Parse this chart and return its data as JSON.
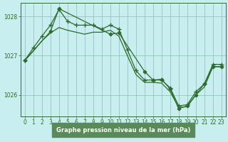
{
  "title": "Graphe pression niveau de la mer (hPa)",
  "background_color": "#c8eef0",
  "plot_bg": "#c8eef0",
  "grid_color": "#90c8b8",
  "line_color": "#2d6b2d",
  "xlabel_bg": "#5a8a5a",
  "xlabel_fg": "#ffffff",
  "xlim": [
    -0.5,
    23.5
  ],
  "ylim": [
    1025.45,
    1028.35
  ],
  "yticks": [
    1026,
    1027,
    1028
  ],
  "xticks": [
    0,
    1,
    2,
    3,
    4,
    5,
    6,
    7,
    8,
    9,
    10,
    11,
    12,
    13,
    14,
    15,
    16,
    17,
    18,
    19,
    20,
    21,
    22,
    23
  ],
  "series": [
    {
      "x": [
        0,
        1,
        2,
        3,
        4,
        5,
        6,
        7,
        8,
        9,
        10,
        11,
        12,
        13,
        14,
        15,
        16,
        17,
        18,
        19,
        20,
        21,
        22,
        23
      ],
      "y": [
        1026.88,
        1027.2,
        1027.5,
        1027.78,
        1028.18,
        1027.88,
        1027.78,
        1027.78,
        1027.78,
        1027.68,
        1027.78,
        1027.68,
        1027.15,
        1026.62,
        1026.38,
        1026.38,
        1026.38,
        1026.18,
        1025.72,
        1025.75,
        1026.08,
        1026.28,
        1026.78,
        1026.78
      ],
      "marker": "+"
    },
    {
      "x": [
        0,
        1,
        2,
        3,
        4,
        5,
        6,
        7,
        8,
        9,
        10,
        11,
        12,
        13,
        14,
        15,
        16,
        17,
        18,
        19,
        20,
        21,
        22,
        23
      ],
      "y": [
        1026.88,
        1027.12,
        1027.38,
        1027.58,
        1027.72,
        1027.65,
        1027.6,
        1027.55,
        1027.6,
        1027.6,
        1027.65,
        1027.5,
        1027.0,
        1026.52,
        1026.32,
        1026.32,
        1026.3,
        1026.08,
        1025.68,
        1025.7,
        1026.0,
        1026.2,
        1026.72,
        1026.72
      ],
      "marker": null
    },
    {
      "x": [
        0,
        3,
        4,
        10,
        11,
        14,
        15,
        16,
        17,
        18,
        19,
        20,
        21,
        22,
        23
      ],
      "y": [
        1026.88,
        1027.62,
        1028.2,
        1027.55,
        1027.58,
        1026.6,
        1026.38,
        1026.4,
        1026.15,
        1025.65,
        1025.72,
        1026.0,
        1026.28,
        1026.72,
        1026.72
      ],
      "marker": "D"
    }
  ]
}
